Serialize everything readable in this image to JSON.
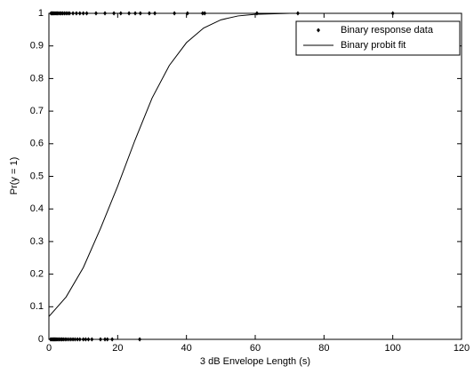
{
  "chart_data": {
    "type": "scatter",
    "xlabel": "3 dB Envelope Length (s)",
    "ylabel": "Pr(y = 1)",
    "xlim": [
      0,
      120
    ],
    "xticks": [
      0,
      20,
      40,
      60,
      80,
      100,
      120
    ],
    "ylim": [
      0,
      1
    ],
    "yticks": [
      0,
      0.1,
      0.2,
      0.3,
      0.4,
      0.5,
      0.6,
      0.7,
      0.8,
      0.9,
      1
    ],
    "legend": "upper right",
    "series": [
      {
        "name": "Binary response data",
        "style": "markers",
        "color": "#000000",
        "x": [
          0.6,
          0.9,
          1.2,
          1.5,
          1.8,
          2.1,
          2.4,
          2.8,
          3.2,
          3.6,
          4,
          4.5,
          5,
          5.5,
          6,
          7,
          8,
          9,
          10,
          11,
          13.7,
          16.3,
          18.9,
          20.9,
          23.3,
          25.1,
          26.6,
          29.2,
          30.8,
          36.5,
          40.3,
          44.7,
          45.3,
          60.5,
          72.4,
          100,
          0.5,
          0.8,
          1.1,
          1.4,
          1.7,
          2,
          2.3,
          2.6,
          3,
          3.4,
          3.8,
          4.2,
          4.7,
          5.2,
          5.8,
          6.4,
          7,
          7.6,
          8.3,
          9,
          10,
          10.7,
          11.5,
          12.5,
          15,
          16.3,
          17,
          18.4,
          26.4
        ],
        "values": [
          1,
          1,
          1,
          1,
          1,
          1,
          1,
          1,
          1,
          1,
          1,
          1,
          1,
          1,
          1,
          1,
          1,
          1,
          1,
          1,
          1,
          1,
          1,
          1,
          1,
          1,
          1,
          1,
          1,
          1,
          1,
          1,
          1,
          1,
          1,
          1,
          0,
          0,
          0,
          0,
          0,
          0,
          0,
          0,
          0,
          0,
          0,
          0,
          0,
          0,
          0,
          0,
          0,
          0,
          0,
          0,
          0,
          0,
          0,
          0,
          0,
          0,
          0,
          0,
          0
        ]
      },
      {
        "name": "Binary probit fit",
        "style": "line",
        "color": "#000000",
        "x": [
          0,
          5,
          10,
          15,
          20,
          25,
          30,
          35,
          40,
          45,
          50,
          55,
          60,
          70,
          80,
          90,
          100
        ],
        "values": [
          0.07,
          0.13,
          0.22,
          0.34,
          0.47,
          0.61,
          0.74,
          0.84,
          0.91,
          0.955,
          0.98,
          0.992,
          0.997,
          1,
          1,
          1,
          1
        ]
      }
    ]
  }
}
